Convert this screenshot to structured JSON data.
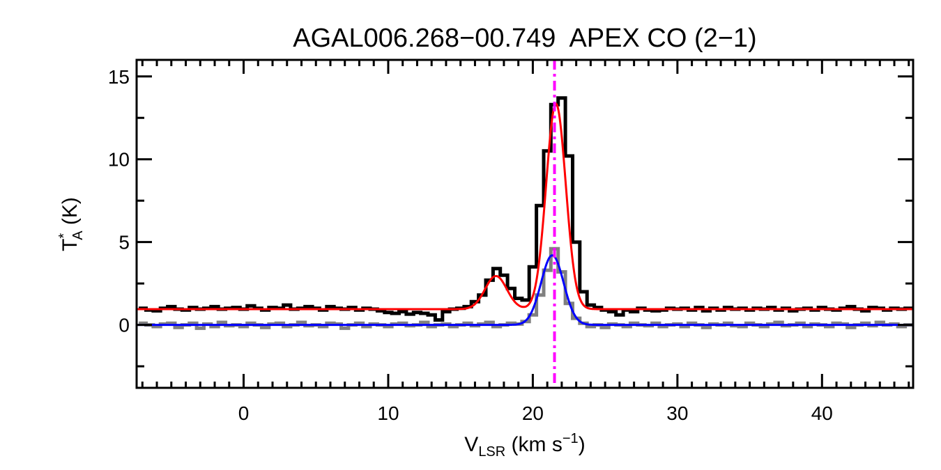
{
  "chart_data": {
    "type": "line",
    "title": "AGAL006.268−00.749  APEX CO (2−1)",
    "xlabel": {
      "main": "V",
      "sub": "LSR",
      "rest": " (km s",
      "sup": "−1",
      "end": ")"
    },
    "ylabel": {
      "main": "T",
      "sup": "*",
      "sub": "A",
      "rest": " (K)"
    },
    "xlim": [
      -7.4,
      46.3
    ],
    "ylim": [
      -3.8,
      16.0
    ],
    "x_ticks": [
      0,
      10,
      20,
      30,
      40
    ],
    "x_tick_labels": [
      "0",
      "10",
      "20",
      "30",
      "40"
    ],
    "y_ticks": [
      0,
      5,
      10,
      15
    ],
    "y_tick_labels": [
      "0",
      "5",
      "10",
      "15"
    ],
    "grid": false,
    "series": [
      {
        "style": "histogram",
        "color": "#000000",
        "v_start": -7.0,
        "v_step": 0.5,
        "values": [
          1.0,
          0.9,
          0.85,
          1.0,
          1.1,
          0.95,
          0.9,
          1.05,
          0.95,
          1.0,
          1.1,
          0.95,
          1.0,
          1.05,
          0.95,
          1.15,
          1.0,
          0.9,
          1.05,
          1.0,
          1.2,
          0.95,
          1.0,
          1.1,
          1.0,
          0.9,
          1.1,
          1.0,
          0.95,
          1.05,
          0.9,
          1.0,
          0.95,
          0.85,
          0.75,
          0.7,
          0.8,
          0.65,
          0.75,
          0.7,
          0.6,
          0.3,
          0.8,
          0.95,
          1.0,
          1.1,
          1.4,
          1.8,
          2.7,
          3.4,
          3.0,
          2.2,
          1.6,
          1.5,
          3.5,
          7.2,
          10.5,
          13.3,
          13.7,
          10.2,
          5.0,
          2.0,
          1.2,
          1.05,
          0.9,
          0.8,
          0.6,
          0.9,
          0.8,
          1.0,
          0.9,
          0.85,
          0.9,
          1.0,
          0.95,
          1.0,
          0.9,
          1.05,
          0.85,
          1.0,
          0.9,
          1.05,
          0.95,
          1.0,
          0.9,
          1.0,
          0.95,
          1.05,
          0.9,
          1.0,
          0.85,
          0.95,
          1.0,
          0.9,
          1.05,
          0.95,
          0.9,
          1.0,
          1.1,
          0.95,
          0.85,
          1.05,
          1.0,
          0.9,
          1.0,
          0.95,
          1.0
        ]
      },
      {
        "style": "histogram",
        "color": "#808080",
        "v_start": -7.0,
        "v_step": 0.5,
        "values": [
          0.1,
          0.0,
          -0.1,
          0.05,
          0.1,
          -0.15,
          0.0,
          0.1,
          -0.2,
          0.05,
          -0.1,
          0.15,
          -0.05,
          0.0,
          -0.1,
          0.1,
          0.0,
          -0.15,
          0.05,
          0.1,
          -0.1,
          0.0,
          0.15,
          -0.05,
          0.0,
          -0.1,
          0.1,
          0.05,
          -0.2,
          0.0,
          0.1,
          -0.1,
          0.05,
          0.0,
          -0.1,
          0.05,
          0.1,
          -0.05,
          0.0,
          0.15,
          -0.1,
          0.0,
          0.05,
          -0.1,
          0.0,
          0.1,
          -0.05,
          0.05,
          0.15,
          -0.1,
          0.0,
          0.1,
          0.05,
          0.2,
          0.6,
          1.8,
          3.3,
          4.6,
          3.2,
          1.3,
          0.4,
          0.1,
          -0.1,
          0.0,
          -0.15,
          0.05,
          0.0,
          -0.1,
          0.1,
          0.0,
          -0.05,
          0.1,
          -0.1,
          0.0,
          0.05,
          -0.1,
          0.1,
          0.0,
          -0.15,
          0.05,
          0.0,
          0.1,
          -0.05,
          -0.1,
          0.1,
          0.0,
          -0.1,
          0.05,
          0.15,
          -0.05,
          0.0,
          0.1,
          -0.1,
          0.05,
          0.0,
          -0.1,
          0.1,
          0.05,
          -0.15,
          0.0,
          0.1,
          -0.05,
          0.15,
          0.0,
          0.05,
          -0.1,
          0.0
        ]
      },
      {
        "style": "gaussian-fit",
        "color": "#ff0000",
        "baseline": 0.95,
        "components": [
          {
            "center": 17.45,
            "amplitude": 2.0,
            "sigma": 0.75
          },
          {
            "center": 21.6,
            "amplitude": 12.4,
            "sigma": 0.68
          }
        ]
      },
      {
        "style": "gaussian-fit",
        "color": "#0000ff",
        "baseline": 0.0,
        "components": [
          {
            "center": 21.35,
            "amplitude": 4.2,
            "sigma": 0.78
          }
        ]
      }
    ],
    "vline": {
      "x": 21.5,
      "color": "#ff00ff",
      "style": "dash-dot"
    }
  }
}
